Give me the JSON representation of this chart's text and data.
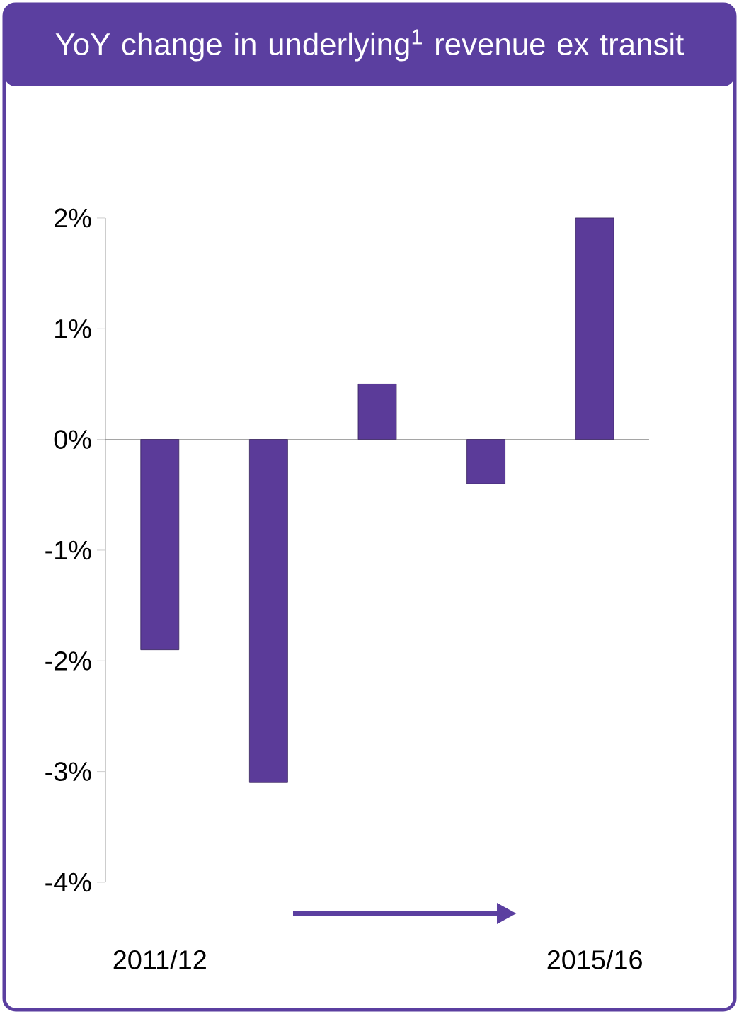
{
  "chart_data": {
    "type": "bar",
    "title": "YoY change in underlying$^{1}$ revenue ex transit",
    "categories": [
      "2011/12",
      null,
      null,
      null,
      "2015/16"
    ],
    "values": [
      -1.9,
      -3.1,
      0.5,
      -0.4,
      2.0
    ],
    "color": "#5b3b99",
    "ylim": [
      -4,
      2
    ],
    "yticks": [
      {
        "value": -4,
        "label": "-4%"
      },
      {
        "value": -3,
        "label": "-3%"
      },
      {
        "value": -2,
        "label": "-2%"
      },
      {
        "value": -1,
        "label": "-1%"
      },
      {
        "value": 0,
        "label": "0%"
      },
      {
        "value": 1,
        "label": "1%"
      },
      {
        "value": 2,
        "label": "2%"
      }
    ]
  }
}
